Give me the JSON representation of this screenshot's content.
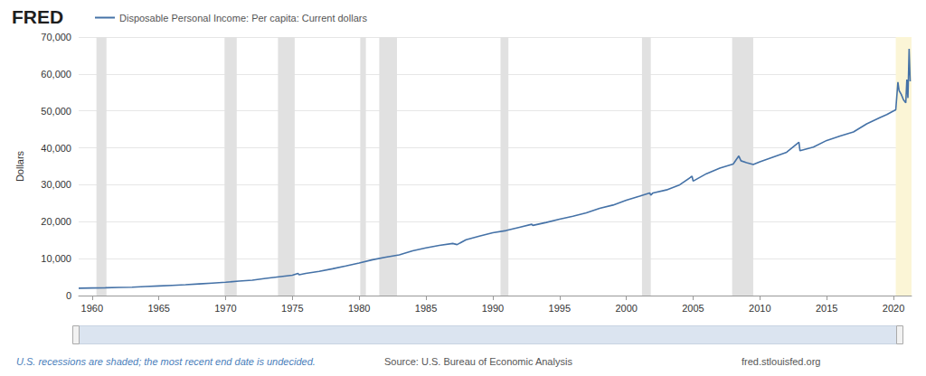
{
  "chart_data": {
    "type": "line",
    "title": "FRED",
    "y_label": "Dollars",
    "grid": true,
    "legend": "top-left",
    "x": [
      1959.0,
      1960.0,
      1961.0,
      1962.0,
      1963.0,
      1964.0,
      1965.0,
      1966.0,
      1967.0,
      1968.0,
      1969.0,
      1970.0,
      1971.0,
      1972.0,
      1973.0,
      1974.0,
      1975.0,
      1975.42,
      1975.5,
      1976.0,
      1977.0,
      1978.0,
      1979.0,
      1980.0,
      1981.0,
      1982.0,
      1983.0,
      1984.0,
      1985.0,
      1986.0,
      1987.0,
      1987.33,
      1988.0,
      1989.0,
      1990.0,
      1991.0,
      1992.0,
      1992.92,
      1993.0,
      1994.0,
      1995.0,
      1996.0,
      1997.0,
      1998.0,
      1999.0,
      2000.0,
      2001.0,
      2001.75,
      2001.83,
      2002.0,
      2003.0,
      2004.0,
      2004.92,
      2005.0,
      2006.0,
      2007.0,
      2008.0,
      2008.42,
      2008.58,
      2009.0,
      2009.5,
      2010.0,
      2011.0,
      2012.0,
      2012.92,
      2013.0,
      2014.0,
      2015.0,
      2016.0,
      2017.0,
      2018.0,
      2019.0,
      2019.5,
      2020.0,
      2020.17,
      2020.33,
      2020.42,
      2020.58,
      2020.75,
      2020.92,
      2021.0,
      2021.08,
      2021.17,
      2021.25
    ],
    "series": [
      {
        "name": "Disposable Personal Income: Per capita: Current dollars",
        "color": "#4572a7",
        "values": [
          2000,
          2050,
          2100,
          2200,
          2280,
          2440,
          2600,
          2770,
          2930,
          3150,
          3380,
          3620,
          3900,
          4170,
          4640,
          5080,
          5500,
          6000,
          5650,
          6000,
          6550,
          7250,
          8000,
          8800,
          9700,
          10400,
          11000,
          12100,
          12900,
          13600,
          14100,
          13800,
          15100,
          16100,
          17000,
          17600,
          18500,
          19300,
          19000,
          19800,
          20700,
          21500,
          22400,
          23600,
          24500,
          25800,
          26900,
          27800,
          27200,
          27800,
          28600,
          30000,
          32300,
          31000,
          33000,
          34500,
          35600,
          37800,
          36500,
          36000,
          35500,
          36200,
          37500,
          38800,
          41500,
          39200,
          40200,
          42000,
          43200,
          44300,
          46500,
          48200,
          49000,
          50000,
          50300,
          57800,
          55500,
          54500,
          53000,
          52200,
          58500,
          53500,
          66800,
          58000
        ]
      }
    ],
    "xlim": [
      1959,
      2021.35
    ],
    "xticks": [
      1960,
      1965,
      1970,
      1975,
      1980,
      1985,
      1990,
      1995,
      2000,
      2005,
      2010,
      2015,
      2020
    ],
    "ylim": [
      0,
      70000
    ],
    "yticks": [
      0,
      {
        "value": 10000,
        "label": "10,000"
      },
      {
        "value": 20000,
        "label": "20,000"
      },
      {
        "value": 30000,
        "label": "30,000"
      },
      {
        "value": 40000,
        "label": "40,000"
      },
      {
        "value": 50000,
        "label": "50,000"
      },
      {
        "value": 60000,
        "label": "60,000"
      },
      {
        "value": 70000,
        "label": "70,000"
      }
    ],
    "recessions": [
      [
        1960.33,
        1961.08
      ],
      [
        1969.92,
        1970.83
      ],
      [
        1973.92,
        1975.17
      ],
      [
        1980.08,
        1980.5
      ],
      [
        1981.5,
        1982.83
      ],
      [
        1990.58,
        1991.17
      ],
      [
        2001.17,
        2001.83
      ],
      [
        2007.92,
        2009.5
      ]
    ],
    "ongoing_recession": [
      2020.17,
      2021.35
    ],
    "recession_note": "U.S. recessions are shaded; the most recent end date is undecided.",
    "source": "Source: U.S. Bureau of Economic Analysis",
    "website": "fred.stlouisfed.org"
  }
}
